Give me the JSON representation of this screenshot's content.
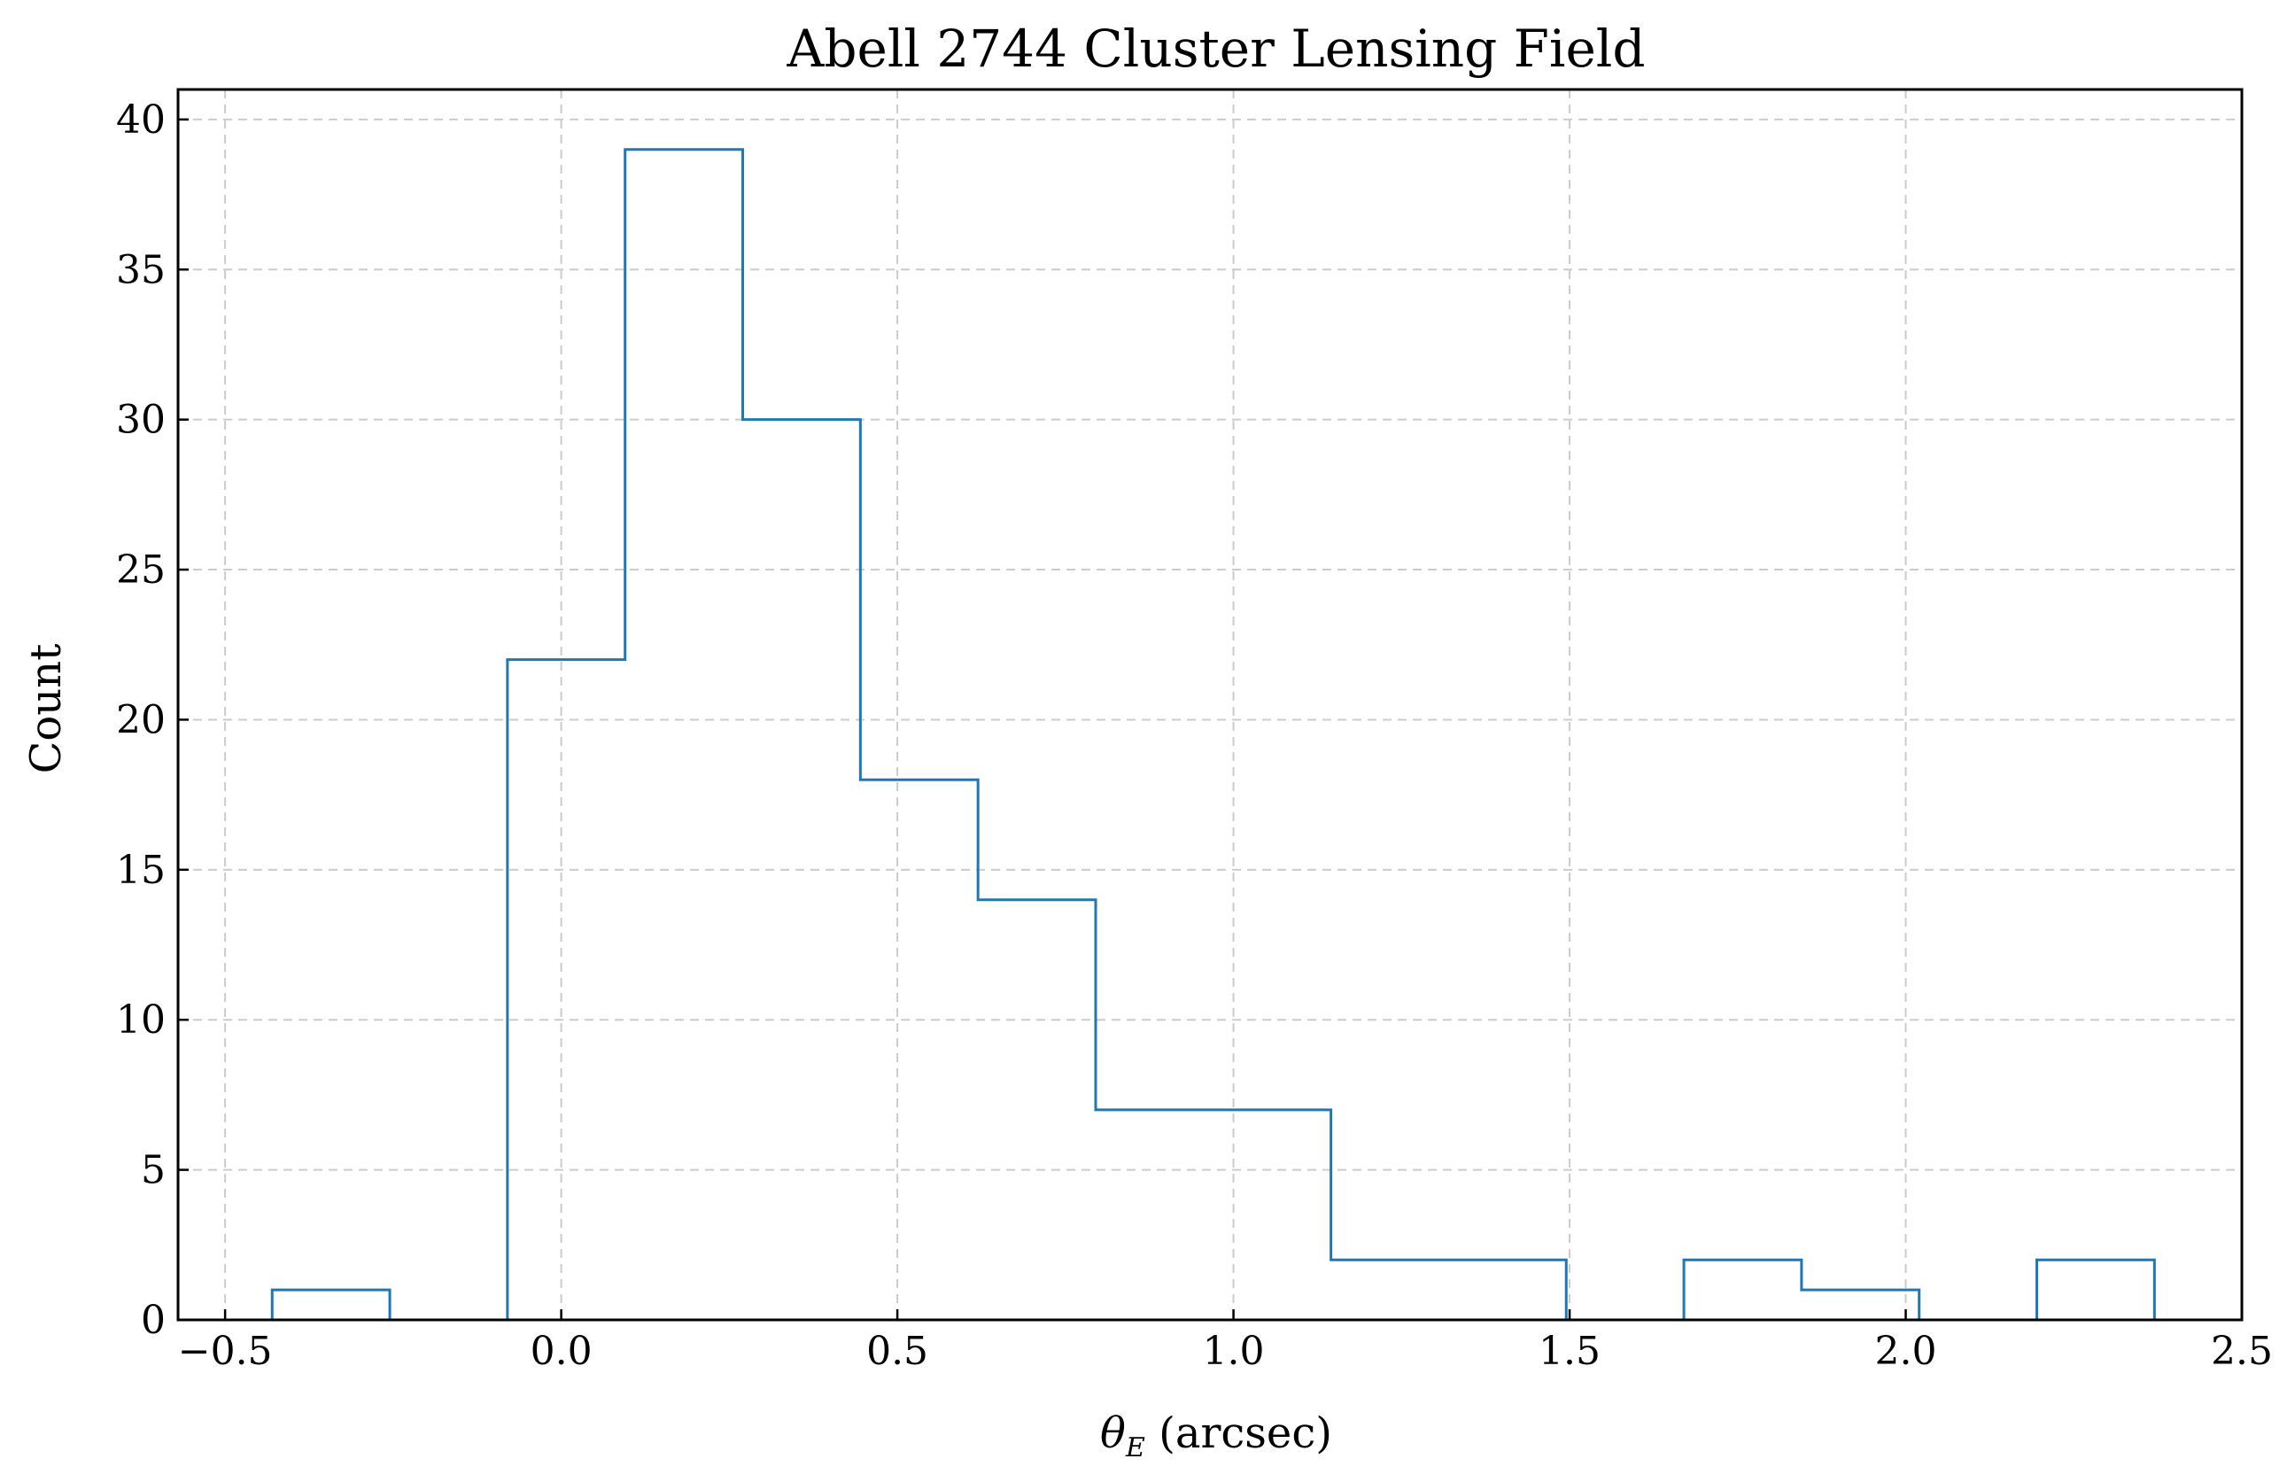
{
  "chart_data": {
    "type": "histogram",
    "title": "Abell 2744 Cluster Lensing Field",
    "xlabel": {
      "symbol": "θ",
      "subscript": "E",
      "unit": " (arcsec)"
    },
    "ylabel": "Count",
    "xlim": [
      -0.57,
      2.5
    ],
    "ylim": [
      0,
      41
    ],
    "xticks": [
      -0.5,
      0.0,
      0.5,
      1.0,
      1.5,
      2.0,
      2.5
    ],
    "xtick_labels": [
      "−0.5",
      "0.0",
      "0.5",
      "1.0",
      "1.5",
      "2.0",
      "2.5"
    ],
    "yticks": [
      0,
      5,
      10,
      15,
      20,
      25,
      30,
      35,
      40
    ],
    "ytick_labels": [
      "0",
      "5",
      "10",
      "15",
      "20",
      "25",
      "30",
      "35",
      "40"
    ],
    "grid": true,
    "histtype": "step",
    "color": "#1f77b4",
    "bin_edges": [
      -0.43,
      -0.255,
      -0.08,
      0.095,
      0.27,
      0.445,
      0.62,
      0.795,
      0.97,
      1.145,
      1.32,
      1.495,
      1.67,
      1.845,
      2.02,
      2.195,
      2.37
    ],
    "counts": [
      1,
      0,
      22,
      39,
      30,
      18,
      14,
      7,
      7,
      2,
      2,
      0,
      2,
      1,
      0,
      2
    ]
  }
}
